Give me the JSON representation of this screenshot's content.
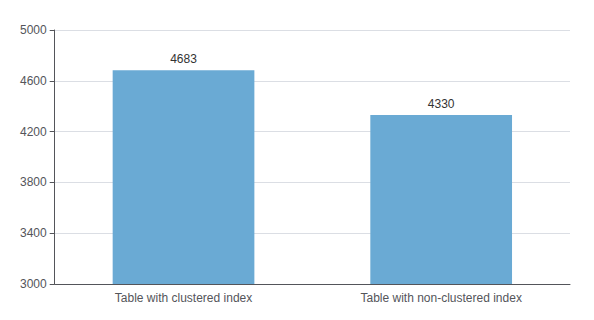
{
  "chart_data": {
    "type": "bar",
    "categories": [
      "Table with clustered index",
      "Table with non-clustered index"
    ],
    "values": [
      4683,
      4330
    ],
    "color": "#6aaad4",
    "ylim": [
      3000,
      5000
    ],
    "yticks": [
      3000,
      3400,
      3800,
      4200,
      4600,
      5000
    ],
    "grid": true,
    "data_labels": true
  }
}
